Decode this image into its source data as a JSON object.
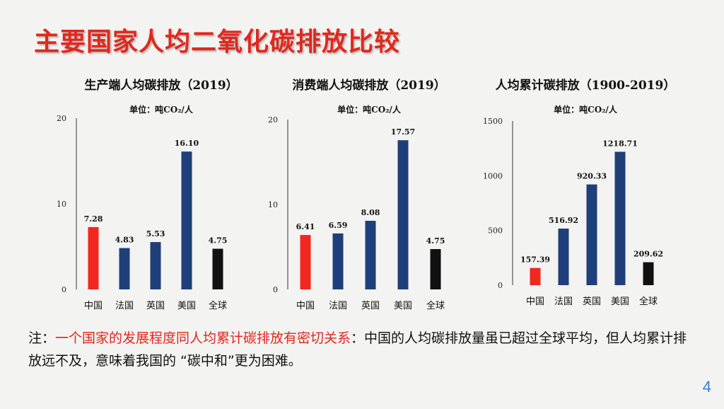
{
  "slide": {
    "title": "主要国家人均二氧化碳排放比较",
    "note_prefix": "注：",
    "note_highlight": "一个国家的发展程度同人均累计碳排放有密切关系",
    "note_rest": "：中国的人均碳排放量虽已超过全球平均，但人均累计排放远不及，意味着我国的 “碳中和”更为困难。",
    "page_number": "4"
  },
  "colors": {
    "highlight": "#f0281e",
    "country": "#1f3f7a",
    "global": "#111111",
    "axis": "#555555"
  },
  "chart_data": [
    {
      "type": "bar",
      "title": "生产端人均碳排放（2019）",
      "unit": "单位：吨CO₂/人",
      "categories": [
        "中国",
        "法国",
        "英国",
        "美国",
        "全球"
      ],
      "values": [
        7.28,
        4.83,
        5.53,
        16.1,
        4.75
      ],
      "value_labels": [
        "7.28",
        "4.83",
        "5.53",
        "16.10",
        "4.75"
      ],
      "ylim": [
        0,
        20
      ],
      "yticks": [
        0,
        10,
        20
      ],
      "bar_colors": [
        "highlight",
        "country",
        "country",
        "country",
        "global"
      ]
    },
    {
      "type": "bar",
      "title": "消费端人均碳排放（2019）",
      "unit": "单位：吨CO₂/人",
      "categories": [
        "中国",
        "法国",
        "英国",
        "美国",
        "全球"
      ],
      "values": [
        6.41,
        6.59,
        8.08,
        17.57,
        4.75
      ],
      "value_labels": [
        "6.41",
        "6.59",
        "8.08",
        "17.57",
        "4.75"
      ],
      "ylim": [
        0,
        20
      ],
      "yticks": [
        0,
        10,
        20
      ],
      "bar_colors": [
        "highlight",
        "country",
        "country",
        "country",
        "global"
      ]
    },
    {
      "type": "bar",
      "title": "人均累计碳排放（1900-2019）",
      "unit": "单位：吨CO₂/人",
      "categories": [
        "中国",
        "法国",
        "英国",
        "美国",
        "全球"
      ],
      "values": [
        157.39,
        516.92,
        920.33,
        1218.71,
        209.62
      ],
      "value_labels": [
        "157.39",
        "516.92",
        "920.33",
        "1218.71",
        "209.62"
      ],
      "ylim": [
        0,
        1500
      ],
      "yticks": [
        0,
        500,
        1000,
        1500
      ],
      "bar_colors": [
        "highlight",
        "country",
        "country",
        "country",
        "global"
      ]
    }
  ]
}
